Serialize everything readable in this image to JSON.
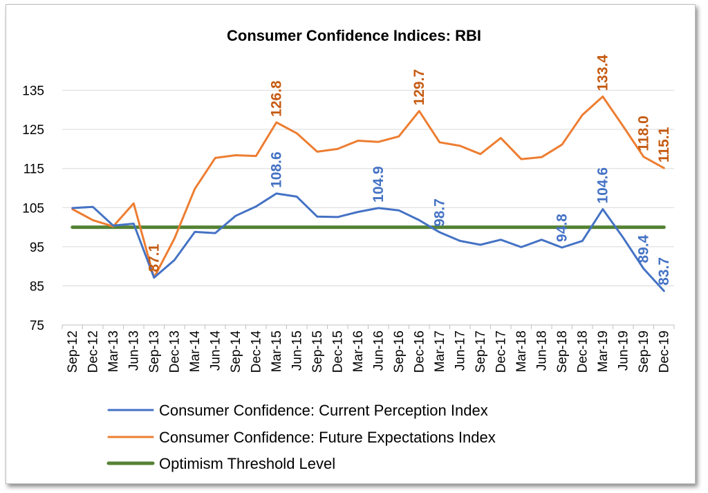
{
  "chart_data": {
    "type": "line",
    "title": "Consumer Confidence Indices: RBI",
    "categories": [
      "Sep-12",
      "Dec-12",
      "Mar-13",
      "Jun-13",
      "Sep-13",
      "Dec-13",
      "Mar-14",
      "Jun-14",
      "Sep-14",
      "Dec-14",
      "Mar-15",
      "Jun-15",
      "Sep-15",
      "Dec-15",
      "Mar-16",
      "Jun-16",
      "Sep-16",
      "Dec-16",
      "Mar-17",
      "Jun-17",
      "Sep-17",
      "Dec-17",
      "Mar-18",
      "Jun-18",
      "Sep-18",
      "Dec-18",
      "Mar-19",
      "Jun-19",
      "Sep-19",
      "Dec-19"
    ],
    "ylim": [
      75,
      145
    ],
    "yticks": [
      75,
      85,
      95,
      105,
      115,
      125,
      135
    ],
    "grid": true,
    "legend_position": "bottom",
    "series": [
      {
        "name": "Consumer Confidence: Current Perception Index",
        "color": "#4472C4",
        "values": [
          104.9,
          105.2,
          100.4,
          100.9,
          87.1,
          91.6,
          98.8,
          98.5,
          102.9,
          105.3,
          108.6,
          107.8,
          102.7,
          102.6,
          103.9,
          104.9,
          104.3,
          101.8,
          98.7,
          96.5,
          95.5,
          96.8,
          94.9,
          96.8,
          94.8,
          96.5,
          104.6,
          97.3,
          89.4,
          83.7
        ],
        "data_labels": [
          {
            "index": 10,
            "text": "108.6"
          },
          {
            "index": 15,
            "text": "104.9"
          },
          {
            "index": 18,
            "text": "98.7"
          },
          {
            "index": 24,
            "text": "94.8"
          },
          {
            "index": 26,
            "text": "104.6"
          },
          {
            "index": 28,
            "text": "89.4"
          },
          {
            "index": 29,
            "text": "83.7"
          }
        ]
      },
      {
        "name": "Consumer Confidence: Future Expectations Index",
        "color": "#ED7D31",
        "label_color": "#C55A11",
        "values": [
          104.6,
          101.8,
          100.2,
          106.1,
          87.1,
          97.1,
          109.8,
          117.7,
          118.4,
          118.2,
          126.8,
          124.0,
          119.3,
          120.0,
          122.1,
          121.8,
          123.2,
          129.7,
          121.7,
          120.8,
          118.7,
          122.8,
          117.4,
          117.9,
          121.1,
          128.7,
          133.4,
          125.8,
          118.0,
          115.1
        ],
        "data_labels": [
          {
            "index": 4,
            "text": "87.1"
          },
          {
            "index": 10,
            "text": "126.8"
          },
          {
            "index": 17,
            "text": "129.7"
          },
          {
            "index": 26,
            "text": "133.4"
          },
          {
            "index": 28,
            "text": "118.0"
          },
          {
            "index": 29,
            "text": "115.1"
          }
        ]
      },
      {
        "name": "Optimism Threshold Level",
        "color": "#548235",
        "values": [
          100,
          100,
          100,
          100,
          100,
          100,
          100,
          100,
          100,
          100,
          100,
          100,
          100,
          100,
          100,
          100,
          100,
          100,
          100,
          100,
          100,
          100,
          100,
          100,
          100,
          100,
          100,
          100,
          100,
          100
        ]
      }
    ]
  }
}
